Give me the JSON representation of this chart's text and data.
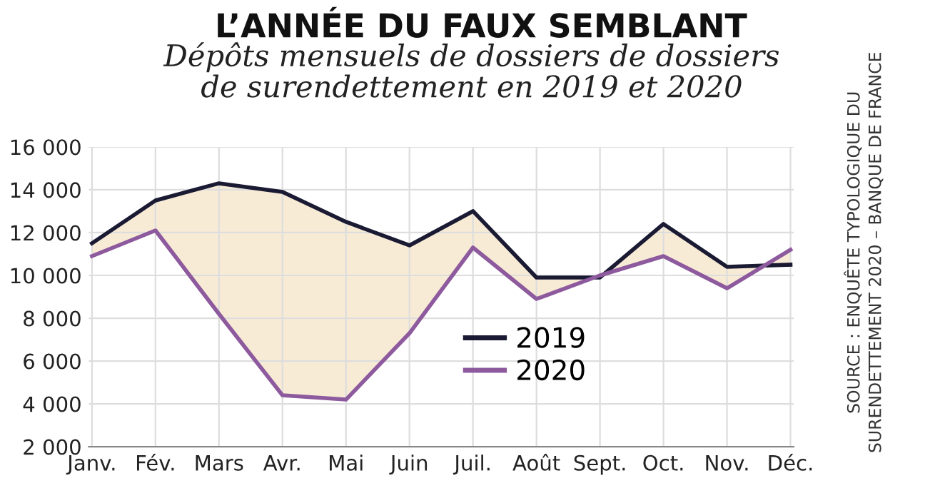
{
  "chart_data": {
    "type": "line",
    "title": "L’ANNÉE DU FAUX SEMBLANT",
    "subtitle": "Dépôts mensuels de dossiers de dossiers\nde surendettement en 2019 et 2020",
    "annotations": [
      "SOURCE : ENQUÊTE TYPOLOGIQUE DU\nSURENDETTEMENT 2020 – BANQUE DE FRANCE"
    ],
    "categories": [
      "Janv.",
      "Fév.",
      "Mars",
      "Avr.",
      "Mai",
      "Juin",
      "Juil.",
      "Août",
      "Sept.",
      "Oct.",
      "Nov.",
      "Déc."
    ],
    "series": [
      {
        "name": "2019",
        "color": "#1a1a33",
        "values": [
          11500,
          13500,
          14300,
          13900,
          12500,
          11400,
          13000,
          9900,
          9900,
          12400,
          10400,
          10500
        ],
        "lower": [
          10900,
          12100,
          8200,
          4400,
          4200,
          7300,
          11300,
          8900,
          10000,
          10900,
          9400,
          11200
        ],
        "upper": [
          11500,
          13500,
          14300,
          13900,
          12500,
          11400,
          13000,
          9900,
          9900,
          12400,
          10400,
          10500
        ]
      },
      {
        "name": "2020",
        "color": "#8e5a9e",
        "values": [
          10900,
          12100,
          8200,
          4400,
          4200,
          7300,
          11300,
          8900,
          10000,
          10900,
          9400,
          11200
        ]
      }
    ],
    "ylim": [
      2000,
      16000
    ],
    "yticks": [
      {
        "value": 2000,
        "label": "2 000"
      },
      {
        "value": 4000,
        "label": "4 000"
      },
      {
        "value": 6000,
        "label": "6 000"
      },
      {
        "value": 8000,
        "label": "8 000"
      },
      {
        "value": 10000,
        "label": "10 000"
      },
      {
        "value": 12000,
        "label": "12 000"
      },
      {
        "value": 14000,
        "label": "14 000"
      },
      {
        "value": 16000,
        "label": "16 000"
      }
    ],
    "grid": true,
    "legend": "lower center",
    "marker": "none",
    "line_style": "solid"
  }
}
